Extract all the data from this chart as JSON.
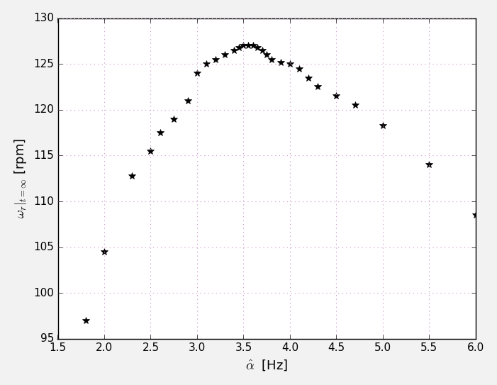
{
  "x": [
    1.8,
    2.0,
    2.3,
    2.5,
    2.6,
    2.75,
    2.9,
    3.0,
    3.1,
    3.2,
    3.3,
    3.4,
    3.45,
    3.5,
    3.55,
    3.6,
    3.65,
    3.7,
    3.75,
    3.8,
    3.9,
    4.0,
    4.1,
    4.2,
    4.3,
    4.5,
    4.7,
    5.0,
    5.5,
    6.0
  ],
  "y": [
    97.0,
    104.5,
    112.8,
    115.5,
    117.5,
    119.0,
    121.0,
    124.0,
    125.0,
    125.5,
    126.0,
    126.5,
    126.8,
    127.0,
    127.0,
    127.0,
    126.8,
    126.5,
    126.0,
    125.5,
    125.2,
    125.0,
    124.5,
    123.5,
    122.5,
    121.5,
    120.5,
    118.3,
    114.0,
    108.5
  ],
  "xlabel": "$\\hat{\\alpha}$  [Hz]",
  "ylabel": "$\\omega_r|_{t=\\infty}$ [rpm]",
  "xlim": [
    1.5,
    6.0
  ],
  "ylim": [
    95,
    130
  ],
  "xticks": [
    1.5,
    2.0,
    2.5,
    3.0,
    3.5,
    4.0,
    4.5,
    5.0,
    5.5,
    6.0
  ],
  "yticks": [
    95,
    100,
    105,
    110,
    115,
    120,
    125,
    130
  ],
  "marker": "*",
  "markersize": 7,
  "color": "black",
  "figure_facecolor": "#f2f2f2",
  "axes_facecolor": "#ffffff",
  "grid_color": "#cc99cc",
  "grid_linestyle": ":"
}
